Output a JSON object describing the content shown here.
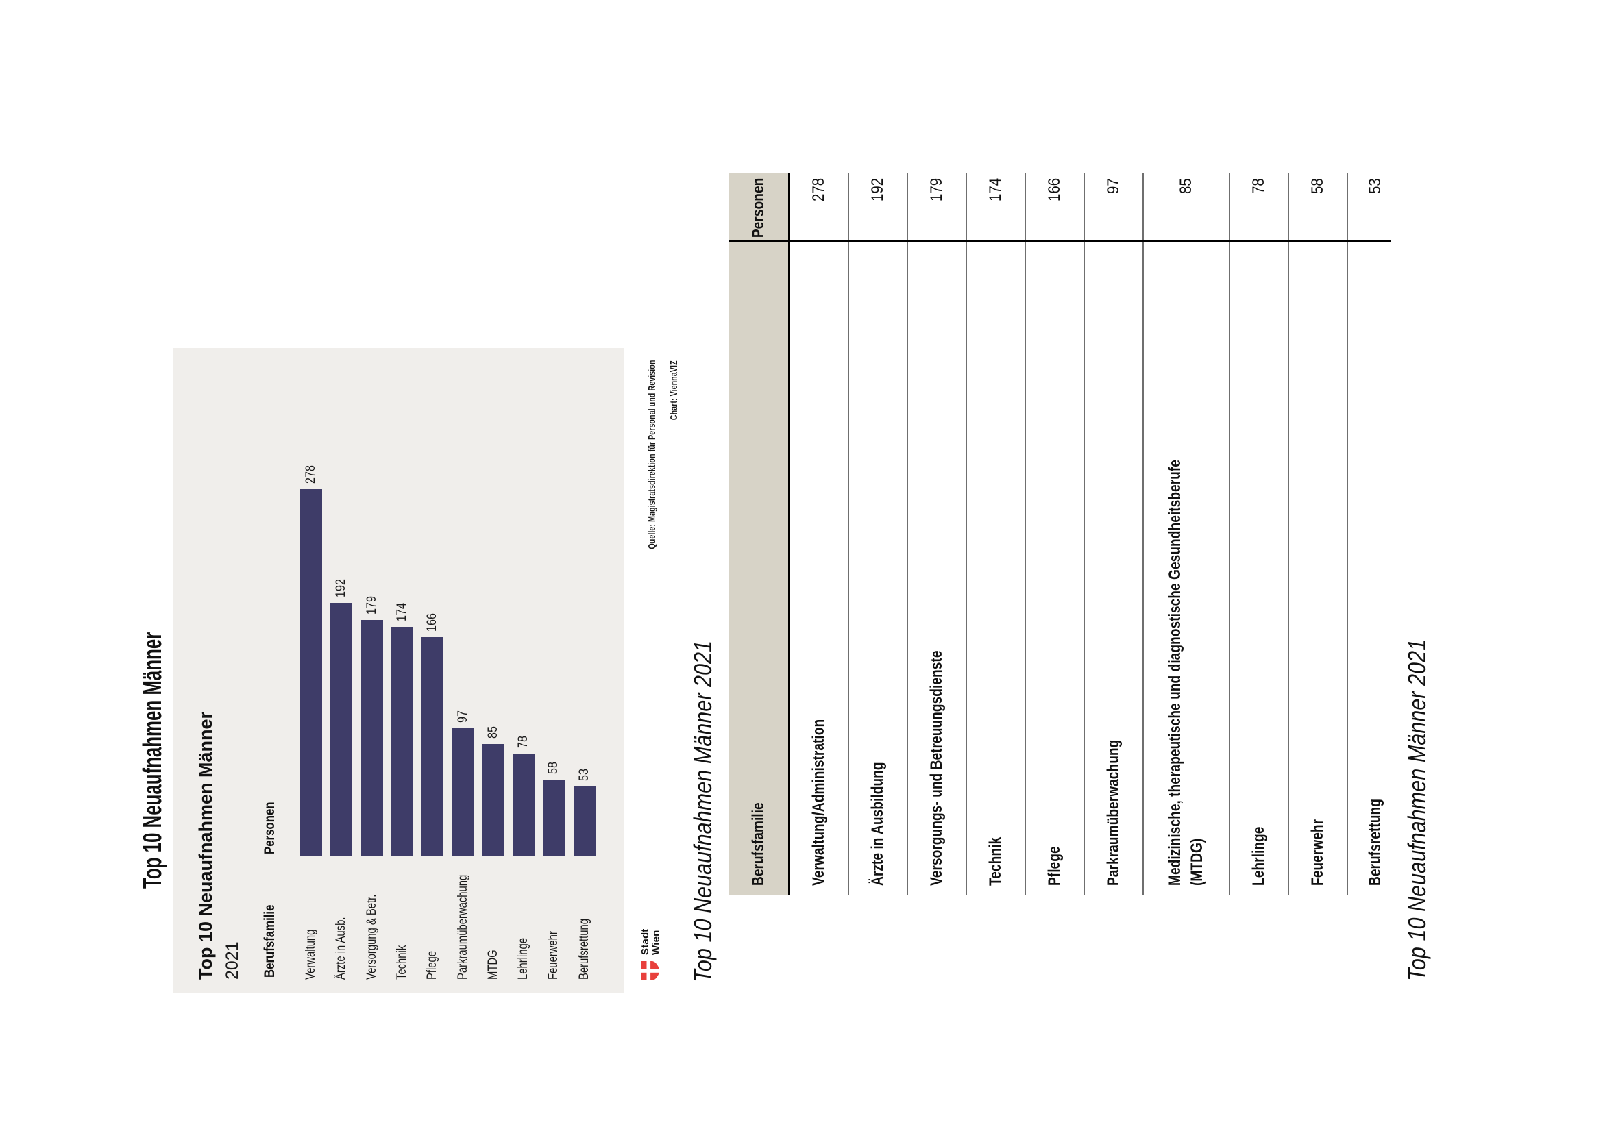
{
  "page": {
    "main_title": "Top 10 Neuaufnahmen Männer",
    "captions": {
      "above_table": "Top 10 Neuaufnahmen Männer 2021",
      "below_table": "Top 10 Neuaufnahmen Männer 2021"
    }
  },
  "chart_data": {
    "type": "bar",
    "orientation": "horizontal",
    "title": "Top 10 Neuaufnahmen Männer",
    "subtitle": "2021",
    "col_headers": [
      "Berufsfamilie",
      "Personen"
    ],
    "categories": [
      "Verwaltung",
      "Ärzte in Ausb.",
      "Versorgung & Betr.",
      "Technik",
      "Pflege",
      "Parkraumüberwachung",
      "MTDG",
      "Lehrlinge",
      "Feuerwehr",
      "Berufsrettung"
    ],
    "values": [
      278,
      192,
      179,
      174,
      166,
      97,
      85,
      78,
      58,
      53
    ],
    "xlim": [
      0,
      290
    ],
    "grid": false,
    "legend": false,
    "bar_color": "#3e3c68",
    "panel_color": "#f0eeeb"
  },
  "footer": {
    "logo": {
      "line1": "Stadt",
      "line2": "Wien",
      "color": "#e8403c"
    },
    "credit_line1": "Quelle: Magistratsdirektion für Personal und Revision",
    "credit_line2": "Chart: ViennaVIZ"
  },
  "table": {
    "headers": [
      "Berufsfamilie",
      "Personen"
    ],
    "header_bg": "#d7d3c7",
    "rows": [
      {
        "label": "Verwaltung/Administration",
        "label2": "",
        "value": "278"
      },
      {
        "label": "Ärzte in Ausbildung",
        "label2": "",
        "value": "192"
      },
      {
        "label": "Versorgungs- und Betreuungsdienste",
        "label2": "",
        "value": "179"
      },
      {
        "label": "Technik",
        "label2": "",
        "value": "174"
      },
      {
        "label": "Pflege",
        "label2": "",
        "value": "166"
      },
      {
        "label": "Parkraumüberwachung",
        "label2": "",
        "value": "97"
      },
      {
        "label": "Medizinische, therapeutische und diagnostische Gesundheitsberufe",
        "label2": "(MTDG)",
        "value": "85"
      },
      {
        "label": "Lehrlinge",
        "label2": "",
        "value": "78"
      },
      {
        "label": "Feuerwehr",
        "label2": "",
        "value": "58"
      },
      {
        "label": "Berufsrettung",
        "label2": "",
        "value": "53"
      }
    ]
  }
}
